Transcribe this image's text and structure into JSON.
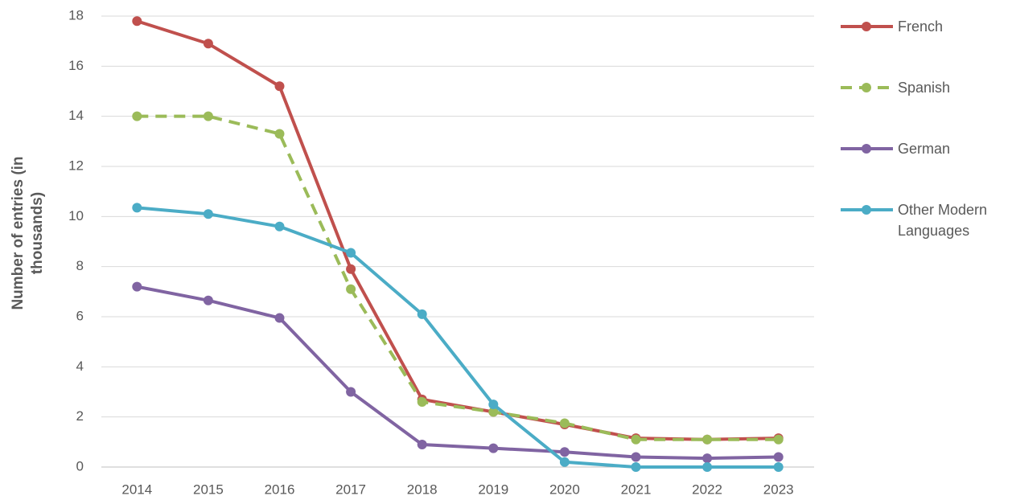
{
  "chart_data": {
    "type": "line",
    "y_label": "Number of entries (in thousands)",
    "categories": [
      "2014",
      "2015",
      "2016",
      "2017",
      "2018",
      "2019",
      "2020",
      "2021",
      "2022",
      "2023"
    ],
    "series": [
      {
        "name": "French",
        "color": "#c0504d",
        "dashed": false,
        "values": [
          17.8,
          16.9,
          15.2,
          7.9,
          2.7,
          2.2,
          1.7,
          1.15,
          1.1,
          1.15
        ]
      },
      {
        "name": "Spanish",
        "color": "#9bbb59",
        "dashed": true,
        "values": [
          14.0,
          14.0,
          13.3,
          7.1,
          2.6,
          2.2,
          1.75,
          1.1,
          1.1,
          1.1
        ]
      },
      {
        "name": "German",
        "color": "#8064a2",
        "dashed": false,
        "values": [
          7.2,
          6.65,
          5.95,
          3.0,
          0.9,
          0.75,
          0.6,
          0.4,
          0.35,
          0.4
        ]
      },
      {
        "name": "Other Modern Languages",
        "color": "#4bacc6",
        "dashed": false,
        "values": [
          10.35,
          10.1,
          9.6,
          8.55,
          6.1,
          2.5,
          0.2,
          0,
          0,
          0
        ]
      }
    ],
    "ylim": [
      0,
      18
    ],
    "yticks": [
      0,
      2,
      4,
      6,
      8,
      10,
      12,
      14,
      16,
      18
    ],
    "grid": true,
    "legend": "right"
  }
}
